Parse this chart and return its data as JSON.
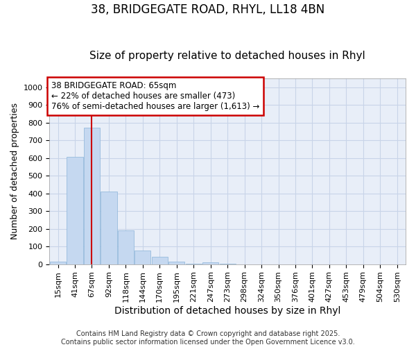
{
  "title_line1": "38, BRIDGEGATE ROAD, RHYL, LL18 4BN",
  "title_line2": "Size of property relative to detached houses in Rhyl",
  "xlabel": "Distribution of detached houses by size in Rhyl",
  "ylabel": "Number of detached properties",
  "bar_color": "#c5d8f0",
  "bar_edge_color": "#8ab4d8",
  "categories": [
    "15sqm",
    "41sqm",
    "67sqm",
    "92sqm",
    "118sqm",
    "144sqm",
    "170sqm",
    "195sqm",
    "221sqm",
    "247sqm",
    "273sqm",
    "298sqm",
    "324sqm",
    "350sqm",
    "376sqm",
    "401sqm",
    "427sqm",
    "453sqm",
    "479sqm",
    "504sqm",
    "530sqm"
  ],
  "values": [
    15,
    608,
    770,
    410,
    190,
    75,
    40,
    15,
    2,
    12,
    2,
    0,
    0,
    0,
    0,
    0,
    0,
    0,
    0,
    0,
    0
  ],
  "vline_x": 2,
  "vline_color": "#cc0000",
  "annotation_line1": "38 BRIDGEGATE ROAD: 65sqm",
  "annotation_line2": "← 22% of detached houses are smaller (473)",
  "annotation_line3": "76% of semi-detached houses are larger (1,613) →",
  "annotation_box_color": "#cc0000",
  "ylim": [
    0,
    1050
  ],
  "yticks": [
    0,
    100,
    200,
    300,
    400,
    500,
    600,
    700,
    800,
    900,
    1000
  ],
  "grid_color": "#c8d4e8",
  "bg_color": "#e8eef8",
  "footer_line1": "Contains HM Land Registry data © Crown copyright and database right 2025.",
  "footer_line2": "Contains public sector information licensed under the Open Government Licence v3.0.",
  "title1_fontsize": 12,
  "title2_fontsize": 11,
  "axis_label_fontsize": 9,
  "tick_fontsize": 8,
  "annotation_fontsize": 8.5,
  "footer_fontsize": 7
}
